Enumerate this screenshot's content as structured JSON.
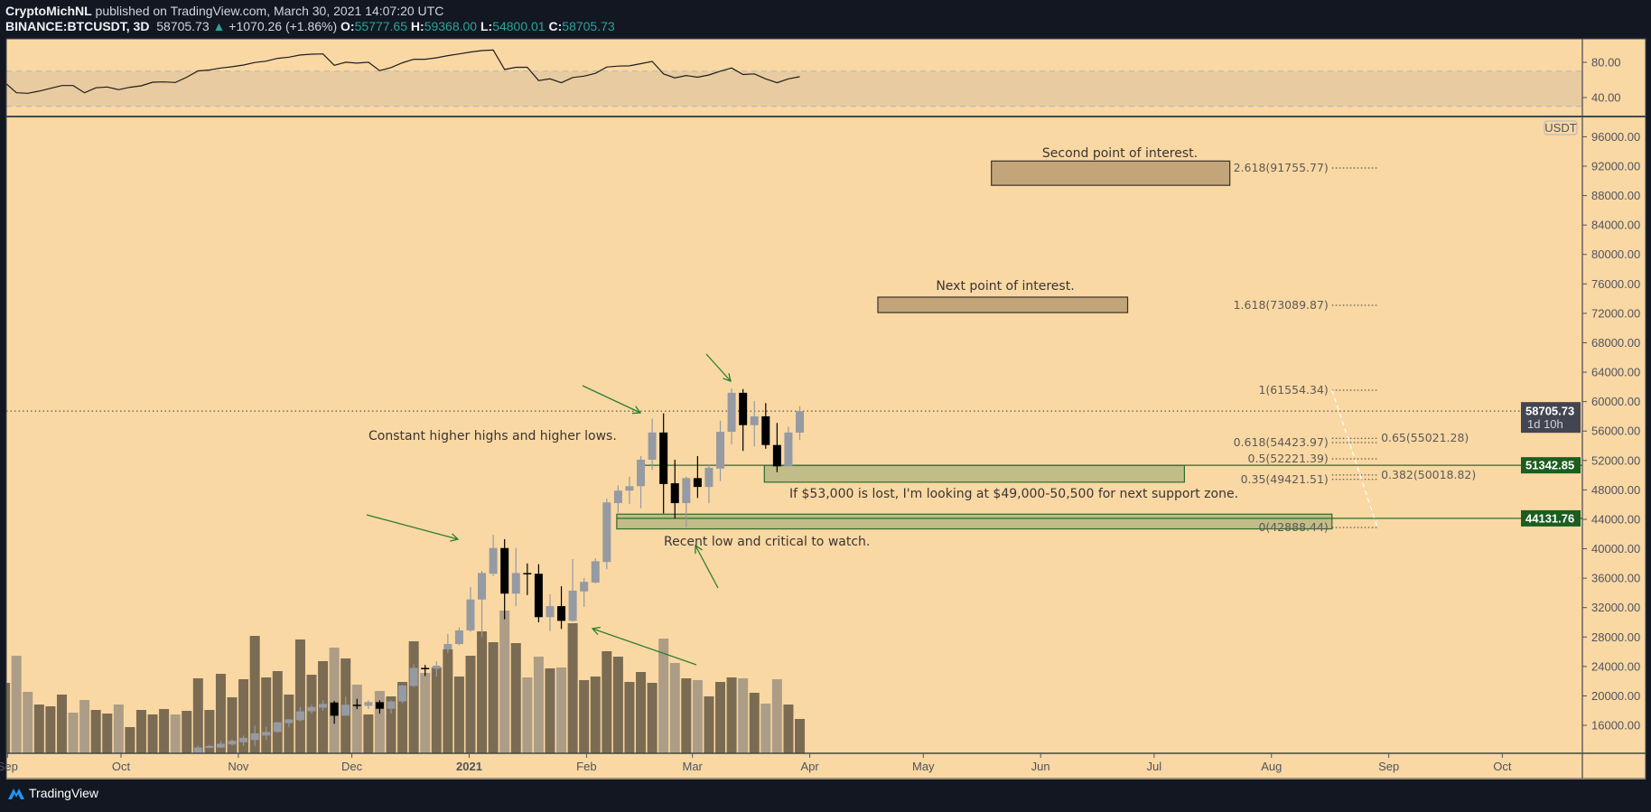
{
  "header": {
    "author": "CryptoMichNL",
    "published": " published on TradingView.com, March 30, 2021 14:07:20 UTC",
    "symbol": "BINANCE:BTCUSDT, 3D",
    "last": "58705.73",
    "change": "+1070.26 (+1.86%)",
    "o_label": "O:",
    "o": "55777.65",
    "h_label": "H:",
    "h": "59368.00",
    "l_label": "L:",
    "l": "54800.01",
    "c_label": "C:",
    "c": "58705.73",
    "up_icon": "triangle-up-icon"
  },
  "footer": {
    "brand": "TradingView",
    "logo_icon": "tradingview-logo-icon"
  },
  "colors": {
    "background": "#f9d8a4",
    "rsi_band": "#e8cba0",
    "candle_up": "#969aa2",
    "candle_down": "#000000",
    "volume_up": "#7b6b52",
    "volume_down": "#ad9d86",
    "annotation_green": "#2e7d32",
    "label_green": "#1b5e20",
    "last_price_label": "#434651",
    "target_box": "#c4a57a",
    "zone_box": "#c2bc88",
    "teal": "#26a69a"
  },
  "chart_data": {
    "type": "candlestick",
    "interval": "3D",
    "currency_label": "USDT",
    "y_ticks": [
      96000,
      92000,
      88000,
      84000,
      80000,
      76000,
      72000,
      68000,
      64000,
      60000,
      56000,
      52000,
      48000,
      44000,
      40000,
      36000,
      32000,
      28000,
      24000,
      20000,
      16000
    ],
    "y_tick_labels": [
      "96000.00",
      "92000.00",
      "88000.00",
      "84000.00",
      "80000.00",
      "76000.00",
      "72000.00",
      "68000.00",
      "64000.00",
      "60000.00",
      "56000.00",
      "52000.00",
      "48000.00",
      "44000.00",
      "40000.00",
      "36000.00",
      "32000.00",
      "28000.00",
      "24000.00",
      "20000.00",
      "16000.00"
    ],
    "x_ticks": [
      {
        "date": "2020-09-01",
        "label": "Sep"
      },
      {
        "date": "2020-10-01",
        "label": "Oct"
      },
      {
        "date": "2020-11-01",
        "label": "Nov"
      },
      {
        "date": "2020-12-01",
        "label": "Dec"
      },
      {
        "date": "2021-01-01",
        "label": "2021"
      },
      {
        "date": "2021-02-01",
        "label": "Feb"
      },
      {
        "date": "2021-03-01",
        "label": "Mar"
      },
      {
        "date": "2021-04-01",
        "label": "Apr"
      },
      {
        "date": "2021-05-01",
        "label": "May"
      },
      {
        "date": "2021-06-01",
        "label": "Jun"
      },
      {
        "date": "2021-07-01",
        "label": "Jul"
      },
      {
        "date": "2021-08-01",
        "label": "Aug"
      },
      {
        "date": "2021-09-01",
        "label": "Sep"
      },
      {
        "date": "2021-10-01",
        "label": "Oct"
      }
    ],
    "candle_fields": [
      "date",
      "open",
      "high",
      "low",
      "close",
      "volume_relative"
    ],
    "candles": [
      [
        "2020-08-31",
        11380,
        12090,
        11150,
        11470,
        234
      ],
      [
        "2020-09-03",
        11470,
        11520,
        9960,
        10280,
        324
      ],
      [
        "2020-09-06",
        10280,
        10550,
        9880,
        10250,
        204
      ],
      [
        "2020-09-09",
        10250,
        10600,
        10220,
        10440,
        162
      ],
      [
        "2020-09-12",
        10440,
        10800,
        10200,
        10680,
        156
      ],
      [
        "2020-09-15",
        10680,
        11100,
        10640,
        10940,
        195
      ],
      [
        "2020-09-18",
        10940,
        11180,
        10300,
        10420,
        135
      ],
      [
        "2020-09-21",
        10420,
        10780,
        10130,
        10360,
        177
      ],
      [
        "2020-09-24",
        10360,
        10940,
        10360,
        10690,
        144
      ],
      [
        "2020-09-27",
        10690,
        10870,
        10540,
        10780,
        132
      ],
      [
        "2020-09-30",
        10780,
        10930,
        10370,
        10570,
        162
      ],
      [
        "2020-10-03",
        10570,
        10800,
        10520,
        10670,
        87
      ],
      [
        "2020-10-06",
        10670,
        11000,
        10530,
        10930,
        144
      ],
      [
        "2020-10-09",
        10930,
        11720,
        10820,
        11380,
        129
      ],
      [
        "2020-10-12",
        11380,
        11730,
        11300,
        11500,
        147
      ],
      [
        "2020-10-15",
        11500,
        11550,
        11210,
        11420,
        129
      ],
      [
        "2020-10-18",
        11420,
        12000,
        11400,
        11910,
        141
      ],
      [
        "2020-10-21",
        12200,
        13250,
        11900,
        12990,
        249
      ],
      [
        "2020-10-24",
        12930,
        13350,
        12900,
        13200,
        144
      ],
      [
        "2020-10-27",
        12970,
        13860,
        12900,
        13500,
        264
      ],
      [
        "2020-10-30",
        13400,
        14100,
        13240,
        13900,
        186
      ],
      [
        "2020-11-02",
        13700,
        14600,
        13200,
        14300,
        246
      ],
      [
        "2020-11-05",
        14000,
        15960,
        13200,
        14900,
        390
      ],
      [
        "2020-11-08",
        14600,
        15800,
        14000,
        15100,
        252
      ],
      [
        "2020-11-11",
        15100,
        16480,
        15000,
        16400,
        273
      ],
      [
        "2020-11-14",
        16300,
        16850,
        15780,
        16800,
        195
      ],
      [
        "2020-11-17",
        16700,
        18480,
        16500,
        17900,
        378
      ],
      [
        "2020-11-20",
        17900,
        18800,
        17600,
        18500,
        261
      ],
      [
        "2020-11-23",
        18400,
        19420,
        18000,
        18900,
        306
      ],
      [
        "2020-11-26",
        19100,
        19300,
        16200,
        17300,
        351
      ],
      [
        "2020-11-29",
        17300,
        19900,
        17300,
        18800,
        315
      ],
      [
        "2020-12-02",
        18800,
        19600,
        18200,
        18650,
        228
      ],
      [
        "2020-12-05",
        18650,
        19400,
        18200,
        19150,
        129
      ],
      [
        "2020-12-08",
        19150,
        19400,
        17600,
        18250,
        207
      ],
      [
        "2020-12-11",
        18250,
        19400,
        17600,
        19250,
        189
      ],
      [
        "2020-12-14",
        19250,
        21500,
        19000,
        21400,
        237
      ],
      [
        "2020-12-17",
        21350,
        24300,
        21200,
        23800,
        372
      ],
      [
        "2020-12-20",
        23800,
        24200,
        22700,
        23700,
        267
      ],
      [
        "2020-12-23",
        23700,
        24700,
        22600,
        24100,
        285
      ],
      [
        "2020-12-26",
        26300,
        28400,
        25800,
        27050,
        345
      ],
      [
        "2020-12-29",
        27050,
        29300,
        26900,
        28900,
        255
      ],
      [
        "2021-01-01",
        28900,
        34800,
        28700,
        33100,
        324
      ],
      [
        "2021-01-04",
        33100,
        37000,
        28000,
        36700,
        405
      ],
      [
        "2021-01-07",
        36600,
        41900,
        36300,
        40100,
        369
      ],
      [
        "2021-01-10",
        40100,
        41300,
        30400,
        33900,
        474
      ],
      [
        "2021-01-13",
        33900,
        40100,
        32200,
        36700,
        366
      ],
      [
        "2021-01-16",
        36700,
        38000,
        33700,
        36600,
        252
      ],
      [
        "2021-01-19",
        36600,
        37900,
        30000,
        30700,
        321
      ],
      [
        "2021-01-22",
        30700,
        33800,
        28800,
        32200,
        282
      ],
      [
        "2021-01-25",
        32200,
        34900,
        29100,
        30200,
        285
      ],
      [
        "2021-01-28",
        30200,
        38600,
        30100,
        34300,
        432
      ],
      [
        "2021-01-31",
        34200,
        36000,
        32100,
        35500,
        243
      ],
      [
        "2021-02-03",
        35400,
        38700,
        35300,
        38300,
        255
      ],
      [
        "2021-02-06",
        38200,
        46800,
        37200,
        46300,
        339
      ],
      [
        "2021-02-09",
        46200,
        48600,
        44900,
        47900,
        321
      ],
      [
        "2021-02-12",
        47900,
        49800,
        46100,
        48500,
        237
      ],
      [
        "2021-02-15",
        48500,
        52600,
        45500,
        52100,
        270
      ],
      [
        "2021-02-18",
        52100,
        57700,
        50700,
        55800,
        234
      ],
      [
        "2021-02-21",
        55800,
        58400,
        44800,
        48800,
        381
      ],
      [
        "2021-02-24",
        48900,
        52100,
        44100,
        46200,
        300
      ],
      [
        "2021-02-27",
        46200,
        49800,
        42900,
        49600,
        249
      ],
      [
        "2021-03-02",
        49600,
        52600,
        46900,
        48400,
        243
      ],
      [
        "2021-03-05",
        48400,
        51500,
        46200,
        51000,
        189
      ],
      [
        "2021-03-08",
        50900,
        57400,
        49200,
        55900,
        237
      ],
      [
        "2021-03-11",
        55900,
        61800,
        54200,
        61200,
        252
      ],
      [
        "2021-03-14",
        61200,
        61700,
        53300,
        56800,
        249
      ],
      [
        "2021-03-17",
        56800,
        60100,
        53900,
        58000,
        201
      ],
      [
        "2021-03-20",
        58000,
        59800,
        53600,
        54100,
        165
      ],
      [
        "2021-03-23",
        54100,
        57100,
        50400,
        51200,
        246
      ],
      [
        "2021-03-26",
        51200,
        56600,
        51200,
        55800,
        162
      ],
      [
        "2021-03-29",
        55777.65,
        59368.0,
        54800.01,
        58705.73,
        114
      ]
    ],
    "rsi": {
      "ylim": [
        20,
        100
      ],
      "band": [
        30,
        70
      ],
      "tick_labels": [
        "80.00",
        "40.00"
      ],
      "ticks": [
        80,
        40
      ],
      "values": [
        56.8,
        45.4,
        44.8,
        47.3,
        50.5,
        53.6,
        53.6,
        45.4,
        51.1,
        52.0,
        48.9,
        51.7,
        53.3,
        57.4,
        57.7,
        57.1,
        63.1,
        70.3,
        71.3,
        73.5,
        75.0,
        76.9,
        79.8,
        81.3,
        84.5,
        85.8,
        88.3,
        89.2,
        89.5,
        76.6,
        80.1,
        79.1,
        80.1,
        70.6,
        74.1,
        79.5,
        83.5,
        83.5,
        85.1,
        87.6,
        89.5,
        91.7,
        93.3,
        93.9,
        71.9,
        74.4,
        74.4,
        59.3,
        61.2,
        56.8,
        62.8,
        64.3,
        67.5,
        74.7,
        75.7,
        76.0,
        78.5,
        81.0,
        66.9,
        62.4,
        65.0,
        63.1,
        65.6,
        70.0,
        73.5,
        66.2,
        66.9,
        61.2,
        56.8,
        61.2,
        63.7
      ]
    },
    "last_price": {
      "value": 58705.73,
      "label": "58705.73",
      "countdown": "1d 10h"
    },
    "horizontal_lines": [
      {
        "price": 51342.85,
        "label": "51342.85",
        "from": "2021-02-15"
      },
      {
        "price": 44131.76,
        "label": "44131.76",
        "from": "2021-02-09"
      }
    ],
    "fib_levels": [
      {
        "level": "2.618",
        "price": 91755.77,
        "label": "2.618(91755.77)"
      },
      {
        "level": "1.618",
        "price": 73089.87,
        "label": "1.618(73089.87)"
      },
      {
        "level": "1",
        "price": 61554.34,
        "label": "1(61554.34)"
      },
      {
        "level": "0.65",
        "price": 55021.28,
        "label": "0.65(55021.28)"
      },
      {
        "level": "0.618",
        "price": 54423.97,
        "label": "0.618(54423.97)"
      },
      {
        "level": "0.5",
        "price": 52221.39,
        "label": "0.5(52221.39)"
      },
      {
        "level": "0.382",
        "price": 50018.82,
        "label": "0.382(50018.82)"
      },
      {
        "level": "0.35",
        "price": 49421.51,
        "label": "0.35(49421.51)"
      },
      {
        "level": "0",
        "price": 42888.44,
        "label": "0(42888.44)"
      }
    ],
    "fib_range": {
      "from": "2021-08-17",
      "to": "2021-08-29"
    },
    "boxes": [
      {
        "kind": "target",
        "from": "2021-05-19",
        "to": "2021-07-21",
        "top": 92700,
        "bottom": 89400
      },
      {
        "kind": "target",
        "from": "2021-04-19",
        "to": "2021-06-24",
        "top": 74200,
        "bottom": 72100
      },
      {
        "kind": "zone",
        "from": "2021-03-20",
        "to": "2021-07-09",
        "top": 51342.85,
        "bottom": 49050
      },
      {
        "kind": "zone",
        "from": "2021-02-09",
        "to": "2021-08-17",
        "top": 44700,
        "bottom": 42700
      }
    ],
    "annotations": [
      "Second point of interest.",
      "Next point of interest.",
      "Constant higher highs and higher lows.",
      "If $53,000 is lost, I'm looking at $49,000-50,500 for next support zone.",
      "Recent low and critical to watch."
    ]
  }
}
